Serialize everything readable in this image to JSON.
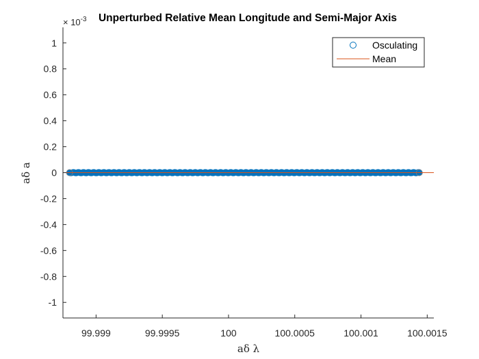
{
  "chart_data": {
    "type": "scatter",
    "title": "Unperturbed Relative Mean Longitude and Semi-Major Axis",
    "xlabel": "aδ λ",
    "ylabel": "aδ a",
    "y_exponent_label": "× 10",
    "y_exponent_power": "-3",
    "xlim": [
      99.99875,
      100.00155
    ],
    "ylim": [
      -1.12,
      1.12
    ],
    "xticks": [
      99.999,
      99.9995,
      100,
      100.0005,
      100.001,
      100.0015
    ],
    "xtick_labels": [
      "99.999",
      "99.9995",
      "100",
      "100.0005",
      "100.001",
      "100.0015"
    ],
    "yticks": [
      -1,
      -0.8,
      -0.6,
      -0.4,
      -0.2,
      0,
      0.2,
      0.4,
      0.6,
      0.8,
      1
    ],
    "ytick_labels": [
      "-1",
      "-0.8",
      "-0.6",
      "-0.4",
      "-0.2",
      "0",
      "0.2",
      "0.4",
      "0.6",
      "0.8",
      "1"
    ],
    "grid": false,
    "legend_position": "top-right",
    "series": [
      {
        "name": "Osculating",
        "style": "markers-circle",
        "color": "#0072BD",
        "x_range": [
          99.9988,
          100.00144
        ],
        "y_value": 0
      },
      {
        "name": "Mean",
        "style": "line",
        "color": "#D95319",
        "x": [
          99.99875,
          100.00155
        ],
        "y": [
          0,
          0
        ]
      }
    ]
  }
}
